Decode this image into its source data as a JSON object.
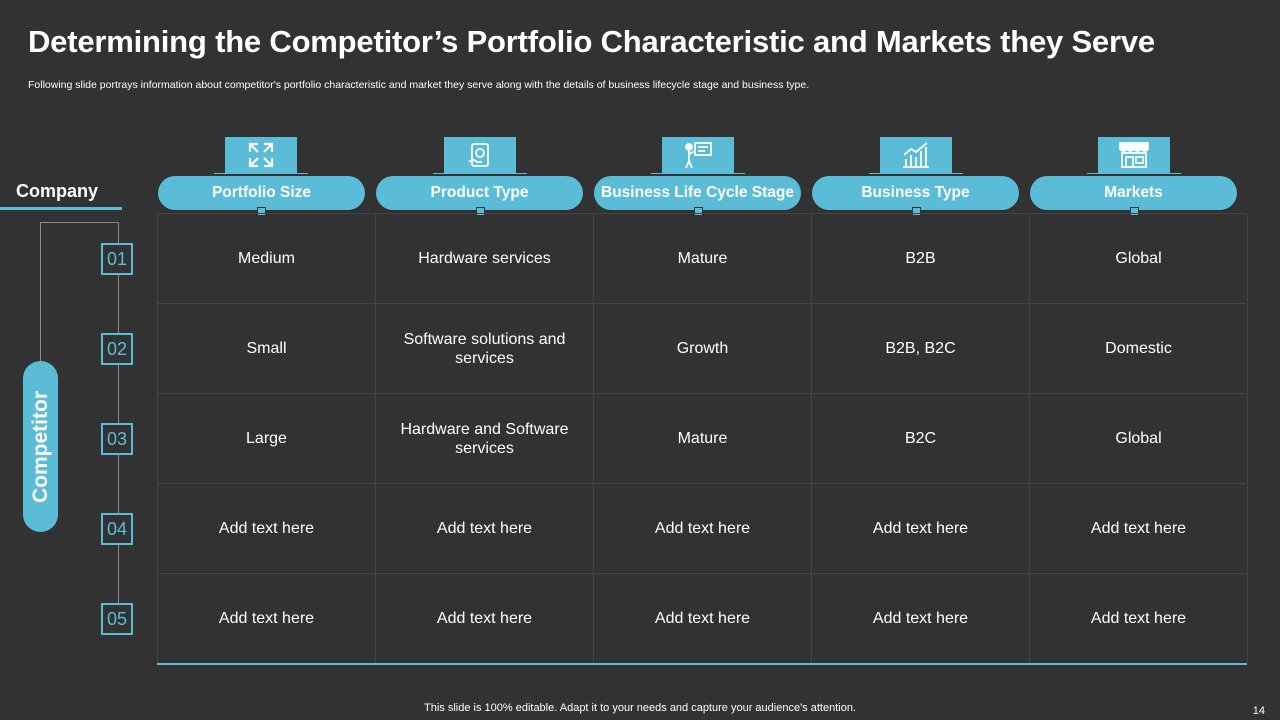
{
  "title": "Determining the Competitor’s Portfolio Characteristic and Markets they Serve",
  "subtitle": "Following slide portrays information about competitor's portfolio characteristic and market they serve along with the details of business lifecycle stage and business type.",
  "sidebar": {
    "company_label": "Company",
    "competitor_label": "Competitor"
  },
  "columns": [
    {
      "label": "Portfolio Size",
      "icon": "expand-arrows-icon"
    },
    {
      "label": "Product Type",
      "icon": "product-tablet-icon"
    },
    {
      "label": "Business Life Cycle Stage",
      "icon": "presenter-board-icon"
    },
    {
      "label": "Business Type",
      "icon": "growth-chart-icon"
    },
    {
      "label": "Markets",
      "icon": "storefront-icon"
    }
  ],
  "rows": [
    {
      "num": "01",
      "cells": [
        "Medium",
        "Hardware services",
        "Mature",
        "B2B",
        "Global"
      ]
    },
    {
      "num": "02",
      "cells": [
        "Small",
        "Software solutions and services",
        "Growth",
        "B2B, B2C",
        "Domestic"
      ]
    },
    {
      "num": "03",
      "cells": [
        "Large",
        "Hardware and Software services",
        "Mature",
        "B2C",
        "Global"
      ]
    },
    {
      "num": "04",
      "cells": [
        "Add text here",
        "Add text here",
        "Add text here",
        "Add text here",
        "Add text here"
      ]
    },
    {
      "num": "05",
      "cells": [
        "Add text here",
        "Add text here",
        "Add text here",
        "Add text here",
        "Add text here"
      ]
    }
  ],
  "footer": "This slide is 100% editable. Adapt it to your needs and capture your audience's attention.",
  "page_number": "14",
  "colors": {
    "background": "#323232",
    "accent": "#5bbcd8",
    "text": "#ffffff"
  }
}
